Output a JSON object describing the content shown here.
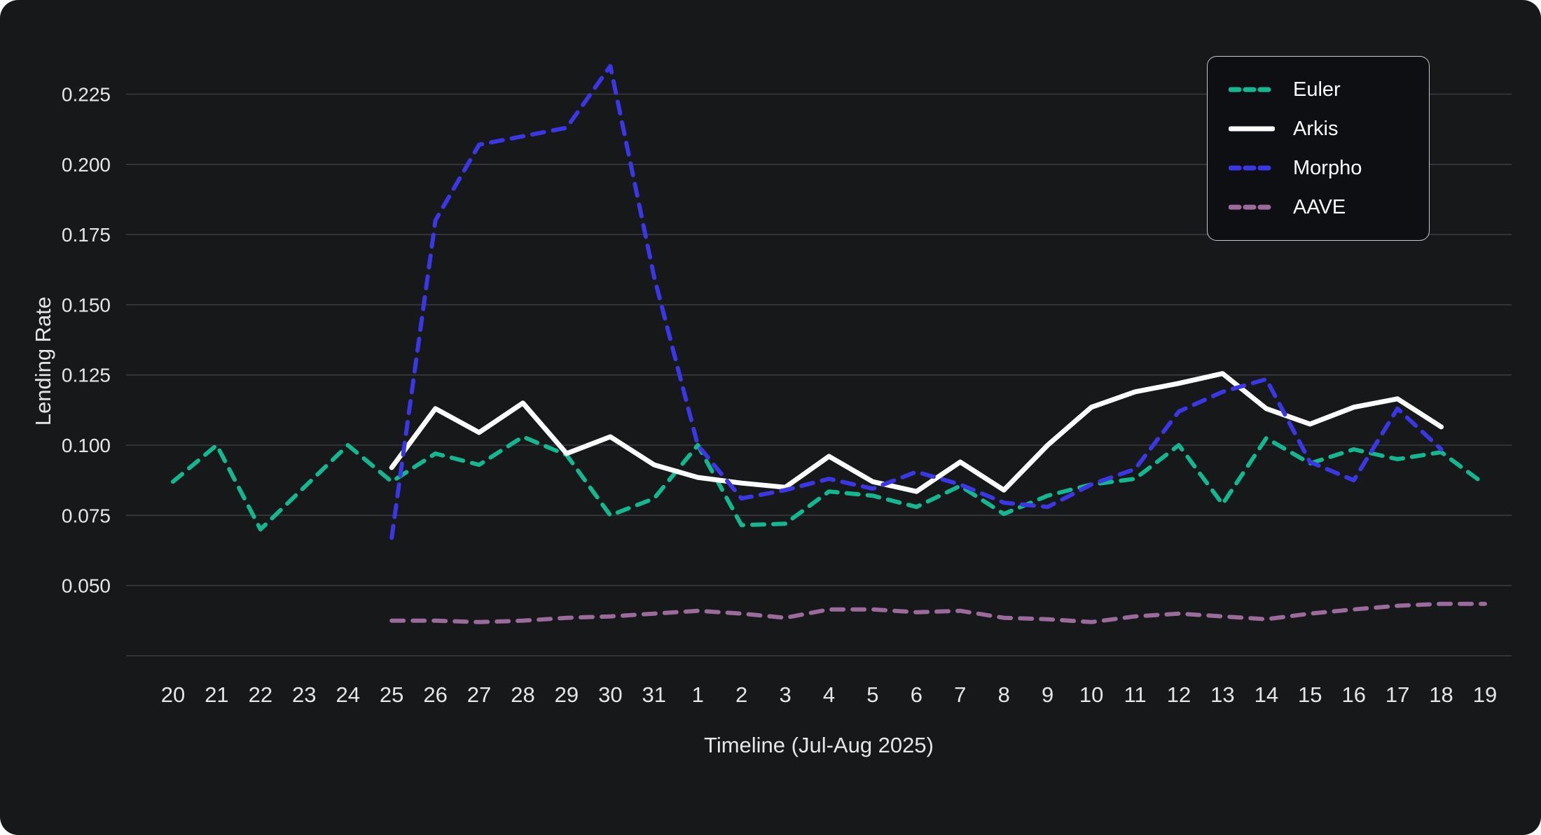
{
  "chart_data": {
    "type": "line",
    "title": "",
    "xlabel": "Timeline (Jul-Aug 2025)",
    "ylabel": "Lending Rate",
    "x_labels": [
      "20",
      "21",
      "22",
      "23",
      "24",
      "25",
      "26",
      "27",
      "28",
      "29",
      "30",
      "31",
      "1",
      "2",
      "3",
      "4",
      "5",
      "6",
      "7",
      "8",
      "9",
      "10",
      "11",
      "12",
      "13",
      "14",
      "15",
      "16",
      "17",
      "18",
      "19"
    ],
    "y_ticks": [
      0.225,
      0.2,
      0.175,
      0.15,
      0.125,
      0.1,
      0.075,
      0.05
    ],
    "y_bottom_gridline": 0.025,
    "ylim": [
      0.025,
      0.2475
    ],
    "grid": "horizontal-only",
    "legend_position": "top-right",
    "colors": {
      "background": "#17181a",
      "gridline": "#3a3b3e",
      "axis_text": "#e6e6e6",
      "euler": "#14b890",
      "arkis": "#ffffff",
      "morpho": "#3b36e6",
      "aave": "#9a6b9b"
    },
    "series": [
      {
        "name": "Euler",
        "color": "#14b890",
        "style": "dashed",
        "start_index": 0,
        "values": [
          0.087,
          0.1,
          0.07,
          0.085,
          0.1,
          0.087,
          0.097,
          0.093,
          0.103,
          0.0965,
          0.075,
          0.081,
          0.1,
          0.0715,
          0.072,
          0.0835,
          0.082,
          0.078,
          0.0855,
          0.0755,
          0.082,
          0.086,
          0.088,
          0.1,
          0.079,
          0.1025,
          0.0935,
          0.0985,
          0.095,
          0.0975,
          0.086
        ]
      },
      {
        "name": "Arkis",
        "color": "#ffffff",
        "style": "solid",
        "start_index": 5,
        "values": [
          0.092,
          0.113,
          0.1045,
          0.115,
          0.097,
          0.103,
          0.093,
          0.0885,
          0.0865,
          0.085,
          0.096,
          0.087,
          0.0835,
          0.094,
          0.084,
          0.1,
          0.1135,
          0.119,
          0.122,
          0.1255,
          0.113,
          0.1075,
          0.1135,
          0.1165,
          0.1065
        ]
      },
      {
        "name": "Morpho",
        "color": "#3b36e6",
        "style": "dashed",
        "start_index": 5,
        "values": [
          0.067,
          0.18,
          0.207,
          0.21,
          0.213,
          0.235,
          0.16,
          0.1,
          0.081,
          0.084,
          0.088,
          0.0845,
          0.0905,
          0.086,
          0.0795,
          0.078,
          0.086,
          0.0915,
          0.112,
          0.119,
          0.1235,
          0.094,
          0.0875,
          0.113,
          0.0985
        ]
      },
      {
        "name": "AAVE",
        "color": "#9a6b9b",
        "style": "dashed",
        "start_index": 5,
        "values": [
          0.0375,
          0.0375,
          0.037,
          0.0375,
          0.0385,
          0.039,
          0.04,
          0.041,
          0.04,
          0.0385,
          0.0415,
          0.0415,
          0.0405,
          0.041,
          0.0385,
          0.038,
          0.037,
          0.039,
          0.04,
          0.039,
          0.038,
          0.04,
          0.0415,
          0.0428,
          0.0435,
          0.0435
        ]
      }
    ]
  }
}
